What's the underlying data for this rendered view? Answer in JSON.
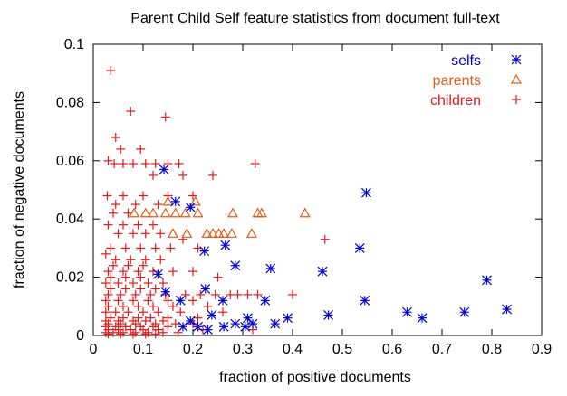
{
  "chart_data": {
    "type": "scatter",
    "title": "Parent Child Self feature statistics from document full-text",
    "xlabel": "fraction of positive documents",
    "ylabel": "fraction of negative documents",
    "xlim": [
      0,
      0.9
    ],
    "ylim": [
      0,
      0.1
    ],
    "xticks": [
      "0",
      "0.1",
      "0.2",
      "0.3",
      "0.4",
      "0.5",
      "0.6",
      "0.7",
      "0.8",
      "0.9"
    ],
    "yticks": [
      "0",
      "0.02",
      "0.04",
      "0.06",
      "0.08",
      "0.1"
    ],
    "legend_position": "top-right",
    "series": [
      {
        "name": "selfs",
        "marker": "asterisk",
        "color": "#0000cc",
        "points": [
          [
            0.142,
            0.057
          ],
          [
            0.165,
            0.046
          ],
          [
            0.195,
            0.044
          ],
          [
            0.548,
            0.049
          ],
          [
            0.535,
            0.03
          ],
          [
            0.265,
            0.031
          ],
          [
            0.223,
            0.029
          ],
          [
            0.285,
            0.024
          ],
          [
            0.356,
            0.023
          ],
          [
            0.46,
            0.022
          ],
          [
            0.13,
            0.021
          ],
          [
            0.79,
            0.019
          ],
          [
            0.225,
            0.016
          ],
          [
            0.145,
            0.015
          ],
          [
            0.345,
            0.012
          ],
          [
            0.545,
            0.012
          ],
          [
            0.26,
            0.012
          ],
          [
            0.175,
            0.012
          ],
          [
            0.63,
            0.008
          ],
          [
            0.745,
            0.008
          ],
          [
            0.83,
            0.009
          ],
          [
            0.472,
            0.007
          ],
          [
            0.66,
            0.006
          ],
          [
            0.39,
            0.006
          ],
          [
            0.31,
            0.006
          ],
          [
            0.238,
            0.007
          ],
          [
            0.195,
            0.005
          ],
          [
            0.32,
            0.004
          ],
          [
            0.365,
            0.004
          ],
          [
            0.285,
            0.004
          ],
          [
            0.262,
            0.003
          ],
          [
            0.21,
            0.003
          ],
          [
            0.305,
            0.003
          ],
          [
            0.23,
            0.002
          ],
          [
            0.18,
            0.003
          ]
        ]
      },
      {
        "name": "parents",
        "marker": "triangle",
        "color": "#e65a19",
        "points": [
          [
            0.15,
            0.046
          ],
          [
            0.205,
            0.046
          ],
          [
            0.082,
            0.042
          ],
          [
            0.105,
            0.042
          ],
          [
            0.12,
            0.042
          ],
          [
            0.145,
            0.042
          ],
          [
            0.165,
            0.042
          ],
          [
            0.185,
            0.042
          ],
          [
            0.21,
            0.042
          ],
          [
            0.28,
            0.042
          ],
          [
            0.33,
            0.042
          ],
          [
            0.338,
            0.042
          ],
          [
            0.425,
            0.042
          ],
          [
            0.16,
            0.035
          ],
          [
            0.188,
            0.035
          ],
          [
            0.228,
            0.035
          ],
          [
            0.24,
            0.035
          ],
          [
            0.252,
            0.035
          ],
          [
            0.262,
            0.035
          ],
          [
            0.278,
            0.035
          ],
          [
            0.318,
            0.035
          ]
        ]
      },
      {
        "name": "children",
        "marker": "plus",
        "color": "#e61919",
        "points": [
          [
            0.035,
            0.091
          ],
          [
            0.075,
            0.077
          ],
          [
            0.145,
            0.075
          ],
          [
            0.045,
            0.068
          ],
          [
            0.055,
            0.064
          ],
          [
            0.095,
            0.064
          ],
          [
            0.03,
            0.06
          ],
          [
            0.042,
            0.059
          ],
          [
            0.06,
            0.059
          ],
          [
            0.08,
            0.059
          ],
          [
            0.105,
            0.059
          ],
          [
            0.125,
            0.059
          ],
          [
            0.15,
            0.059
          ],
          [
            0.172,
            0.059
          ],
          [
            0.325,
            0.059
          ],
          [
            0.12,
            0.055
          ],
          [
            0.18,
            0.055
          ],
          [
            0.24,
            0.055
          ],
          [
            0.028,
            0.048
          ],
          [
            0.06,
            0.048
          ],
          [
            0.1,
            0.048
          ],
          [
            0.15,
            0.048
          ],
          [
            0.2,
            0.048
          ],
          [
            0.045,
            0.045
          ],
          [
            0.085,
            0.045
          ],
          [
            0.13,
            0.045
          ],
          [
            0.04,
            0.042
          ],
          [
            0.07,
            0.042
          ],
          [
            0.03,
            0.038
          ],
          [
            0.06,
            0.038
          ],
          [
            0.09,
            0.038
          ],
          [
            0.12,
            0.038
          ],
          [
            0.05,
            0.035
          ],
          [
            0.08,
            0.035
          ],
          [
            0.105,
            0.035
          ],
          [
            0.135,
            0.035
          ],
          [
            0.18,
            0.033
          ],
          [
            0.465,
            0.033
          ],
          [
            0.035,
            0.03
          ],
          [
            0.065,
            0.03
          ],
          [
            0.095,
            0.03
          ],
          [
            0.125,
            0.03
          ],
          [
            0.155,
            0.03
          ],
          [
            0.21,
            0.03
          ],
          [
            0.025,
            0.028
          ],
          [
            0.045,
            0.026
          ],
          [
            0.075,
            0.026
          ],
          [
            0.105,
            0.026
          ],
          [
            0.135,
            0.026
          ],
          [
            0.04,
            0.024
          ],
          [
            0.07,
            0.024
          ],
          [
            0.1,
            0.024
          ],
          [
            0.03,
            0.022
          ],
          [
            0.06,
            0.022
          ],
          [
            0.09,
            0.022
          ],
          [
            0.12,
            0.022
          ],
          [
            0.16,
            0.022
          ],
          [
            0.2,
            0.022
          ],
          [
            0.25,
            0.02
          ],
          [
            0.035,
            0.02
          ],
          [
            0.065,
            0.02
          ],
          [
            0.095,
            0.02
          ],
          [
            0.025,
            0.018
          ],
          [
            0.05,
            0.018
          ],
          [
            0.08,
            0.018
          ],
          [
            0.11,
            0.018
          ],
          [
            0.14,
            0.018
          ],
          [
            0.035,
            0.016
          ],
          [
            0.065,
            0.016
          ],
          [
            0.095,
            0.016
          ],
          [
            0.125,
            0.016
          ],
          [
            0.03,
            0.014
          ],
          [
            0.055,
            0.014
          ],
          [
            0.085,
            0.014
          ],
          [
            0.115,
            0.014
          ],
          [
            0.145,
            0.014
          ],
          [
            0.185,
            0.014
          ],
          [
            0.215,
            0.014
          ],
          [
            0.245,
            0.014
          ],
          [
            0.275,
            0.014
          ],
          [
            0.29,
            0.014
          ],
          [
            0.31,
            0.014
          ],
          [
            0.33,
            0.014
          ],
          [
            0.025,
            0.012
          ],
          [
            0.05,
            0.012
          ],
          [
            0.08,
            0.012
          ],
          [
            0.11,
            0.012
          ],
          [
            0.15,
            0.012
          ],
          [
            0.2,
            0.012
          ],
          [
            0.4,
            0.014
          ],
          [
            0.03,
            0.01
          ],
          [
            0.06,
            0.01
          ],
          [
            0.09,
            0.01
          ],
          [
            0.12,
            0.01
          ],
          [
            0.16,
            0.01
          ],
          [
            0.23,
            0.01
          ],
          [
            0.025,
            0.008
          ],
          [
            0.045,
            0.008
          ],
          [
            0.07,
            0.008
          ],
          [
            0.1,
            0.008
          ],
          [
            0.13,
            0.008
          ],
          [
            0.175,
            0.008
          ],
          [
            0.26,
            0.008
          ],
          [
            0.035,
            0.006
          ],
          [
            0.06,
            0.006
          ],
          [
            0.09,
            0.006
          ],
          [
            0.115,
            0.006
          ],
          [
            0.15,
            0.006
          ],
          [
            0.21,
            0.006
          ],
          [
            0.025,
            0.005
          ],
          [
            0.05,
            0.005
          ],
          [
            0.08,
            0.005
          ],
          [
            0.105,
            0.005
          ],
          [
            0.14,
            0.005
          ],
          [
            0.03,
            0.004
          ],
          [
            0.055,
            0.004
          ],
          [
            0.085,
            0.004
          ],
          [
            0.125,
            0.004
          ],
          [
            0.165,
            0.004
          ],
          [
            0.2,
            0.004
          ],
          [
            0.025,
            0.003
          ],
          [
            0.045,
            0.003
          ],
          [
            0.065,
            0.003
          ],
          [
            0.095,
            0.003
          ],
          [
            0.12,
            0.003
          ],
          [
            0.15,
            0.003
          ],
          [
            0.03,
            0.002
          ],
          [
            0.05,
            0.002
          ],
          [
            0.075,
            0.002
          ],
          [
            0.1,
            0.002
          ],
          [
            0.13,
            0.002
          ],
          [
            0.22,
            0.002
          ],
          [
            0.32,
            0.002
          ],
          [
            0.025,
            0.001
          ],
          [
            0.04,
            0.001
          ],
          [
            0.06,
            0.001
          ],
          [
            0.085,
            0.001
          ],
          [
            0.11,
            0.001
          ],
          [
            0.14,
            0.001
          ],
          [
            0.17,
            0.001
          ],
          [
            0.03,
            0.0005
          ],
          [
            0.055,
            0.0005
          ],
          [
            0.08,
            0.0005
          ],
          [
            0.105,
            0.0005
          ],
          [
            0.125,
            0.0005
          ]
        ]
      }
    ]
  }
}
